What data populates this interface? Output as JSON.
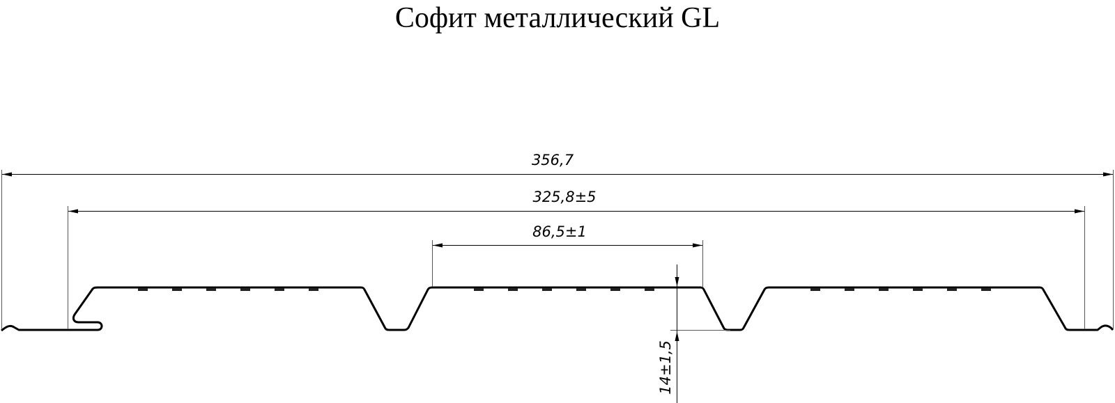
{
  "title": "Софит металлический GL",
  "dimensions": {
    "overall_width": "356,7",
    "effective_width": "325,8±5",
    "rib_pitch": "86,5±1",
    "profile_height": "14±1,5"
  },
  "colors": {
    "line": "#000000",
    "dimension_line": "#555555",
    "background": "#ffffff"
  }
}
